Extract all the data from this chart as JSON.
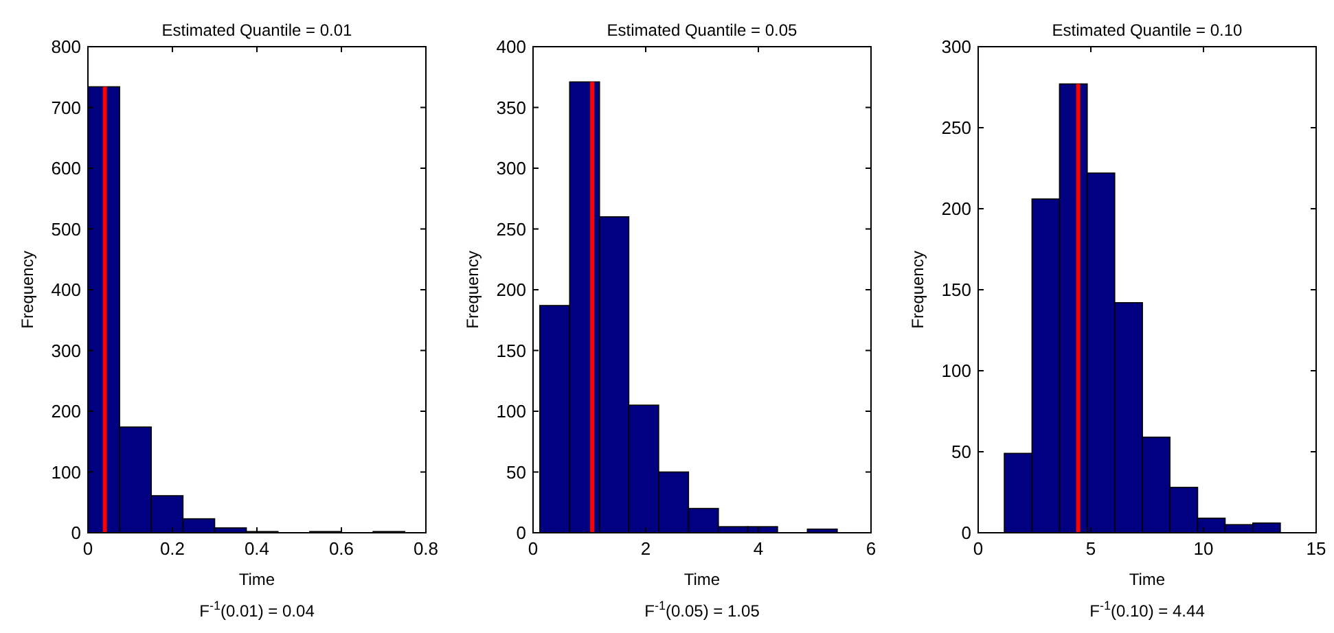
{
  "chart_data": [
    {
      "type": "histogram",
      "title": "Estimated Quantile = 0.01",
      "xlabel": "Time",
      "ylabel": "Frequency",
      "bins": [
        0,
        0.075,
        0.15,
        0.225,
        0.3,
        0.375,
        0.45,
        0.525,
        0.6,
        0.675,
        0.75
      ],
      "values": [
        734,
        174,
        61,
        23,
        8,
        2,
        0,
        2,
        0,
        2
      ],
      "color": "#000080",
      "xlim": [
        0,
        0.8
      ],
      "xticks": [
        0,
        0.2,
        0.4,
        0.6,
        0.8
      ],
      "ylim": [
        0,
        800
      ],
      "yticks": [
        0,
        100,
        200,
        300,
        400,
        500,
        600,
        700,
        800
      ],
      "ref_lines": [
        {
          "axis": "x",
          "value": 0.04,
          "color": "#ff0000"
        }
      ],
      "annotations": [
        "F$^{-1}$(0.01) = 0.04"
      ],
      "grid": false
    },
    {
      "type": "histogram",
      "title": "Estimated Quantile = 0.05",
      "xlabel": "Time",
      "ylabel": "Frequency",
      "bins": [
        0.12,
        0.65,
        1.18,
        1.7,
        2.23,
        2.76,
        3.29,
        3.81,
        4.34,
        4.87,
        5.4
      ],
      "values": [
        187,
        371,
        260,
        105,
        50,
        20,
        5,
        5,
        0,
        3
      ],
      "color": "#000080",
      "xlim": [
        0,
        6
      ],
      "xticks": [
        0,
        2,
        4,
        6
      ],
      "ylim": [
        0,
        400
      ],
      "yticks": [
        0,
        50,
        100,
        150,
        200,
        250,
        300,
        350,
        400
      ],
      "ref_lines": [
        {
          "axis": "x",
          "value": 1.05,
          "color": "#ff0000"
        }
      ],
      "annotations": [
        "F$^{-1}$(0.05) = 1.05"
      ],
      "grid": false
    },
    {
      "type": "histogram",
      "title": "Estimated Quantile = 0.10",
      "xlabel": "Time",
      "ylabel": "Frequency",
      "bins": [
        1.16,
        2.39,
        3.61,
        4.84,
        6.06,
        7.29,
        8.51,
        9.74,
        10.96,
        12.19,
        13.41
      ],
      "values": [
        49,
        206,
        277,
        222,
        142,
        59,
        28,
        9,
        5,
        6
      ],
      "color": "#000080",
      "xlim": [
        0,
        15
      ],
      "xticks": [
        0,
        5,
        10,
        15
      ],
      "ylim": [
        0,
        300
      ],
      "yticks": [
        0,
        50,
        100,
        150,
        200,
        250,
        300
      ],
      "ref_lines": [
        {
          "axis": "x",
          "value": 4.44,
          "color": "#ff0000"
        }
      ],
      "annotations": [
        "F$^{-1}$(0.10) = 4.44"
      ],
      "grid": false
    }
  ]
}
